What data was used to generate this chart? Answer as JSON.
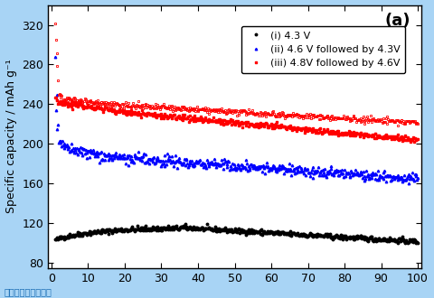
{
  "title": "(a)",
  "ylabel": "Specific capacity / mAh g⁻¹",
  "xlabel": "",
  "xlim": [
    -1,
    101
  ],
  "ylim": [
    75,
    340
  ],
  "yticks": [
    80,
    120,
    160,
    200,
    240,
    280,
    320
  ],
  "xticks": [
    0,
    10,
    20,
    30,
    40,
    50,
    60,
    70,
    80,
    90,
    100
  ],
  "bg_color": "#a8d4f5",
  "plot_bg": "#ffffff",
  "legend_labels": [
    "(i) 4.3 V",
    "(ii) 4.6 V followed by 4.3V",
    "(iii) 4.8V followed by 4.6V"
  ],
  "colors": [
    "black",
    "blue",
    "red"
  ],
  "watermark": "图片来源见参考文献",
  "figsize": [
    4.8,
    3.3
  ],
  "dpi": 100
}
